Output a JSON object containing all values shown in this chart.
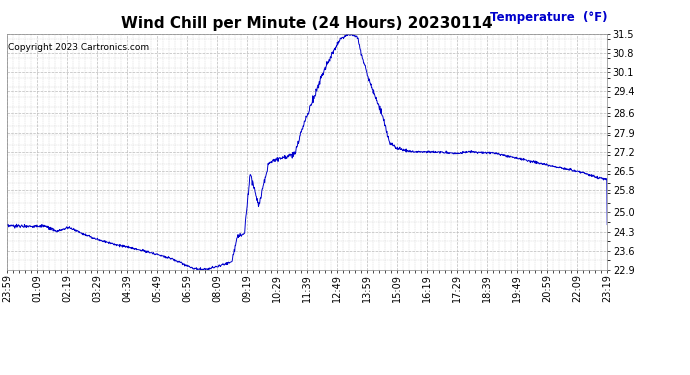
{
  "title": "Wind Chill per Minute (24 Hours) 20230114",
  "ylabel": "Temperature  (°F)",
  "copyright_text": "Copyright 2023 Cartronics.com",
  "line_color": "#0000cc",
  "bg_color": "#ffffff",
  "plot_bg_color": "#ffffff",
  "grid_color": "#bbbbbb",
  "ylabel_color": "#0000cc",
  "ylim": [
    22.9,
    31.5
  ],
  "yticks": [
    22.9,
    23.6,
    24.3,
    25.0,
    25.8,
    26.5,
    27.2,
    27.9,
    28.6,
    29.4,
    30.1,
    30.8,
    31.5
  ],
  "xtick_labels": [
    "23:59",
    "01:09",
    "02:19",
    "03:29",
    "04:39",
    "05:49",
    "06:59",
    "08:09",
    "09:19",
    "10:29",
    "11:39",
    "12:49",
    "13:59",
    "15:09",
    "16:19",
    "17:29",
    "18:39",
    "19:49",
    "20:59",
    "22:09",
    "23:19"
  ],
  "title_fontsize": 11,
  "axis_fontsize": 7,
  "copyright_fontsize": 6.5,
  "ylabel_fontsize": 8.5
}
